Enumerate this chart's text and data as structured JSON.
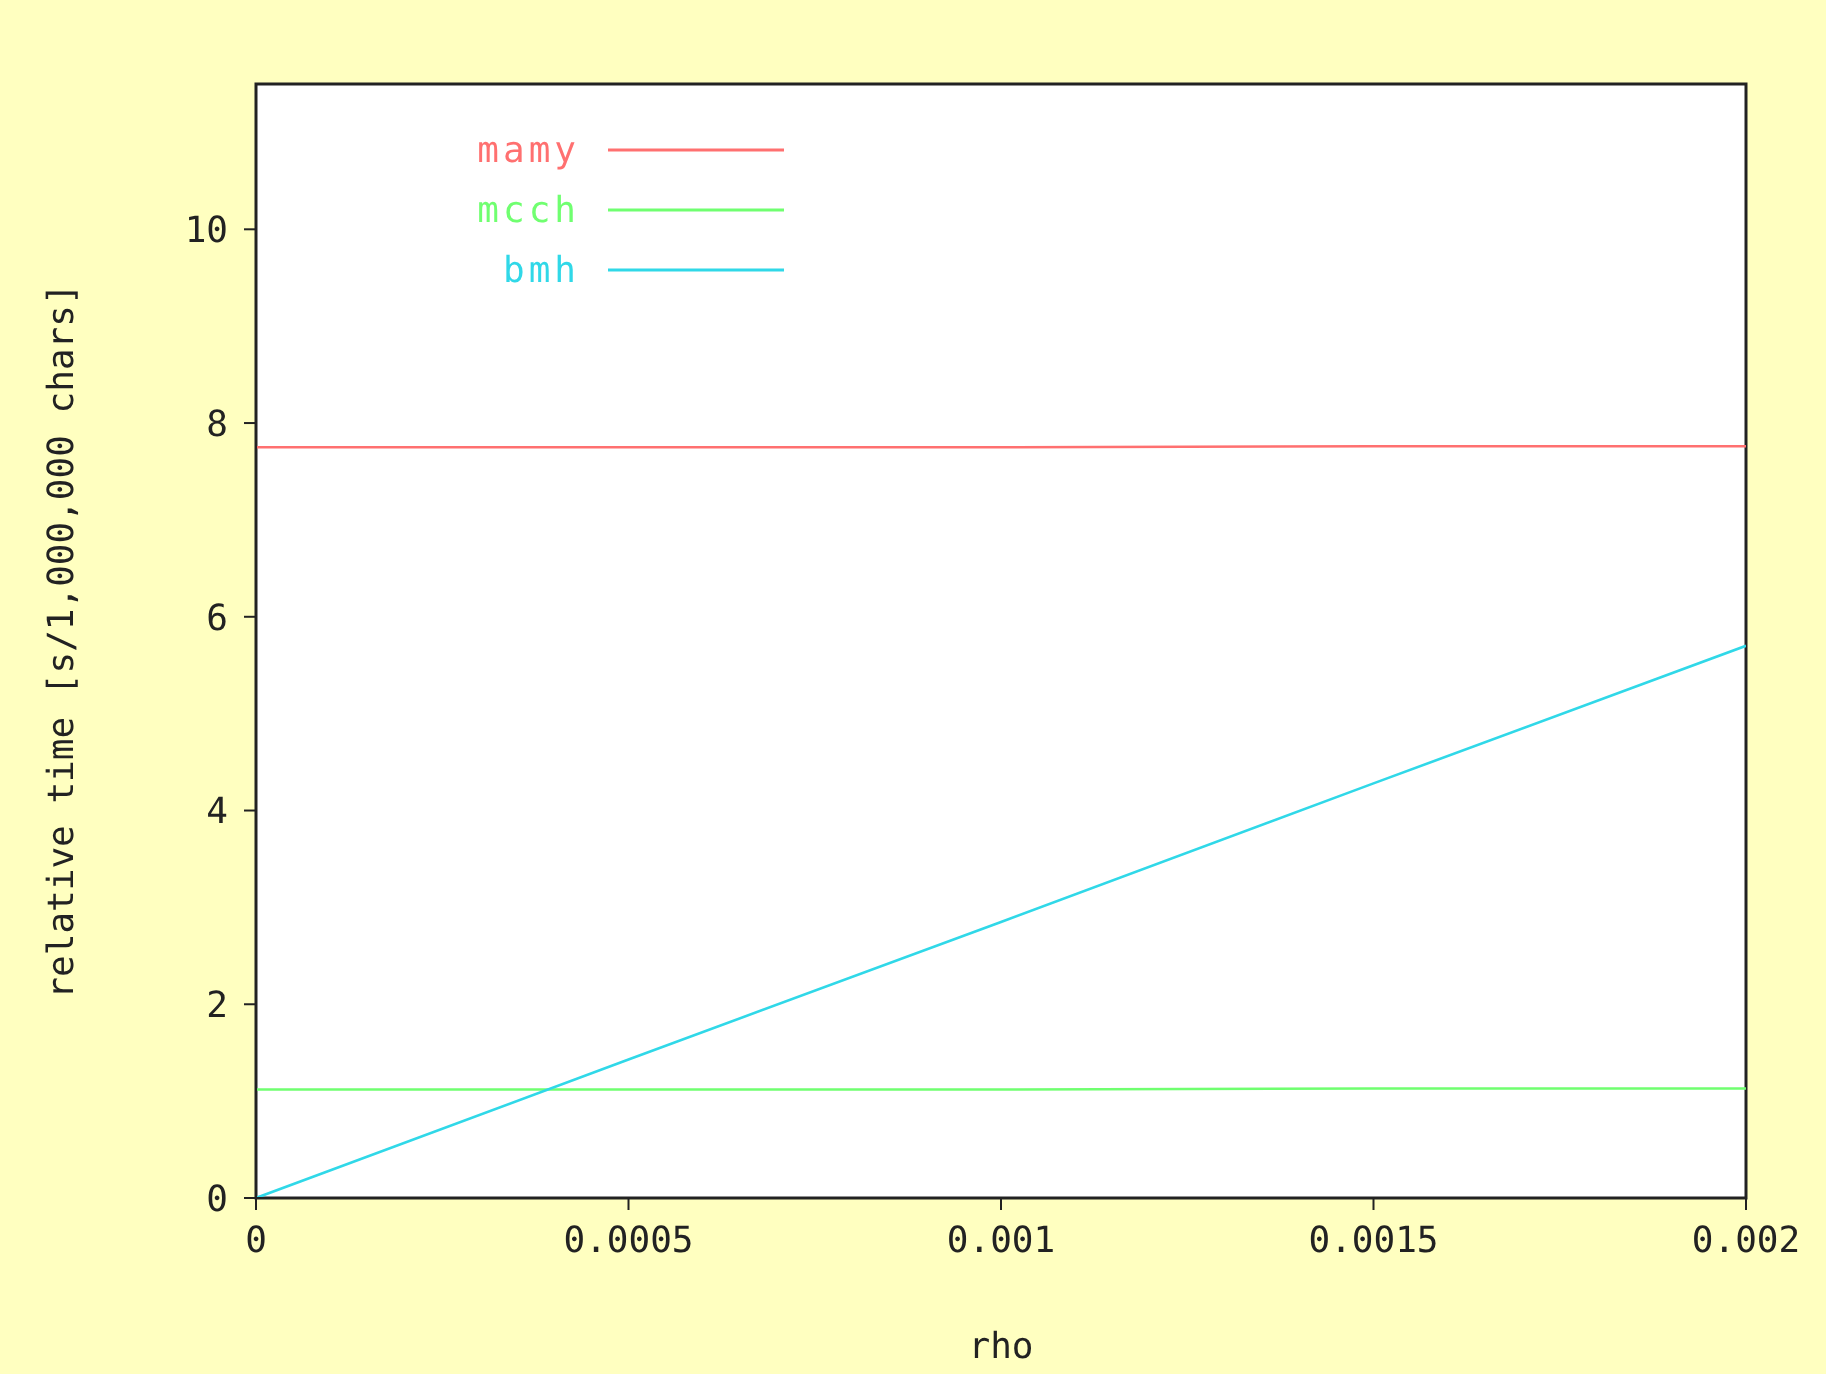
{
  "chart_data": {
    "type": "line",
    "xlabel": "rho",
    "ylabel": "relative time [s/1,000,000 chars]",
    "x": [
      0,
      0.0005,
      0.001,
      0.0015,
      0.002
    ],
    "series": [
      {
        "name": "mamy",
        "color": "#ff7070",
        "values": [
          7.75,
          7.75,
          7.75,
          7.76,
          7.76
        ]
      },
      {
        "name": "mcch",
        "color": "#70ff70",
        "values": [
          1.12,
          1.12,
          1.12,
          1.13,
          1.13
        ]
      },
      {
        "name": "bmh",
        "color": "#30d8e8",
        "values": [
          0,
          1.43,
          2.85,
          4.28,
          5.7
        ]
      }
    ],
    "xlim": [
      0,
      0.002
    ],
    "xticks": [
      0,
      0.0005,
      0.001,
      0.0015,
      0.002
    ],
    "ylim": [
      0,
      11.5
    ],
    "yticks": [
      0,
      2,
      4,
      6,
      8,
      10
    ],
    "legend": "top left",
    "marker": "none",
    "line_style": "solid"
  }
}
